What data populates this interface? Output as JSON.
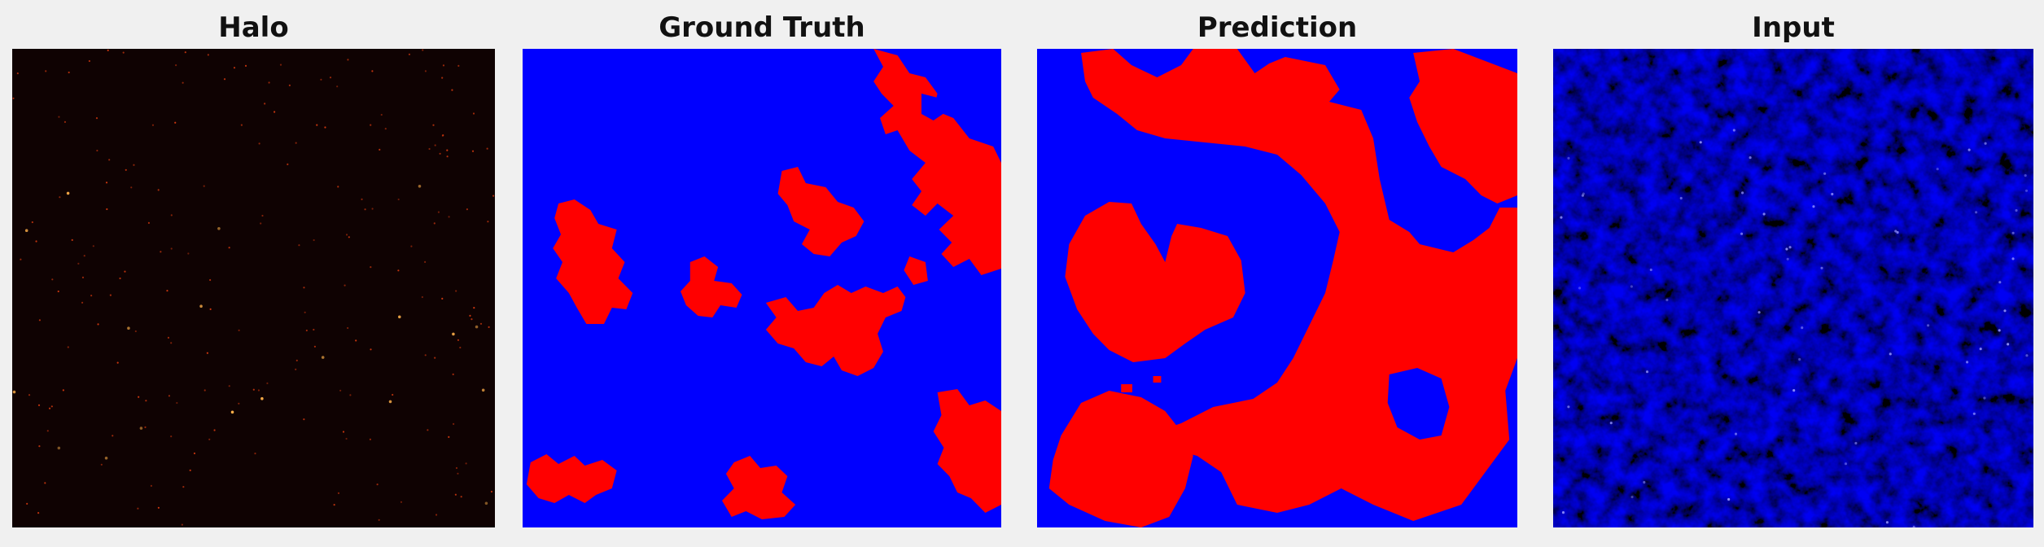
{
  "panels": [
    {
      "title": "Halo",
      "kind": "halo"
    },
    {
      "title": "Ground Truth",
      "kind": "ground-truth"
    },
    {
      "title": "Prediction",
      "kind": "prediction"
    },
    {
      "title": "Input",
      "kind": "input"
    }
  ],
  "colors": {
    "background": "#f0f0f0",
    "halo_bg": "#0f0202",
    "halo_point": "#ff5a1a",
    "mask_background": "#0000ff",
    "mask_foreground": "#ff0000",
    "input_dark": "#00001e",
    "input_mid": "#0a0aa8",
    "input_bright": "#6a6aff"
  }
}
